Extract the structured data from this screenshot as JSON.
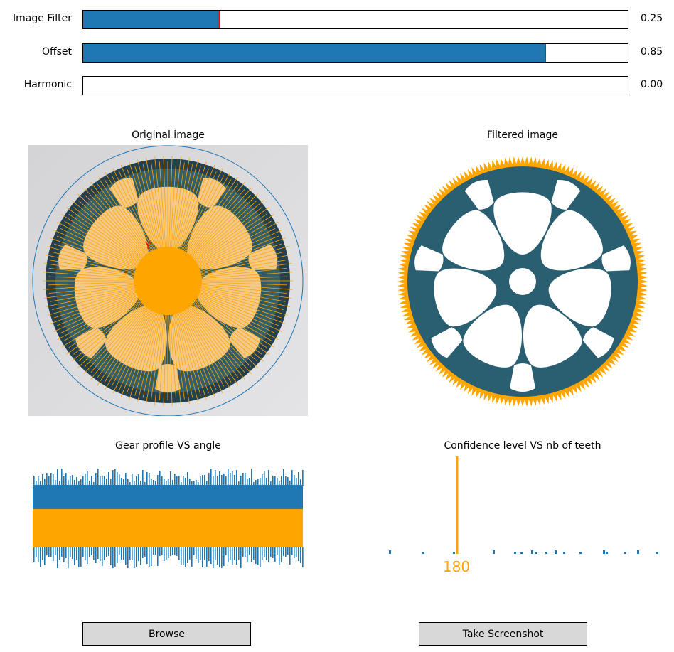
{
  "sliders": [
    {
      "id": "image-filter",
      "label": "Image Filter",
      "value": 0.25,
      "value_text": "0.25"
    },
    {
      "id": "offset",
      "label": "Offset",
      "value": 0.85,
      "value_text": "0.85"
    },
    {
      "id": "harmonic",
      "label": "Harmonic",
      "value": 0.0,
      "value_text": "0.00"
    }
  ],
  "panels": {
    "original": {
      "title": "Original image"
    },
    "filtered": {
      "title": "Filtered image"
    },
    "profile": {
      "title": "Gear profile VS angle"
    },
    "confidence": {
      "title": "Confidence level VS nb of teeth"
    }
  },
  "gear": {
    "teeth": 180,
    "spokes": 7,
    "detected_marker": "Y"
  },
  "confidence_chart": {
    "peak_label": "180",
    "peak_teeth": 180
  },
  "buttons": {
    "browse": "Browse",
    "screenshot": "Take Screenshot"
  },
  "colors": {
    "accent_blue": "#1f77b4",
    "accent_orange": "#ffa500",
    "gear_body": "#2a5f72",
    "gear_dark": "#1f3a4a",
    "slider_handle": "#ff0000",
    "button_bg": "#d8d8d8"
  }
}
